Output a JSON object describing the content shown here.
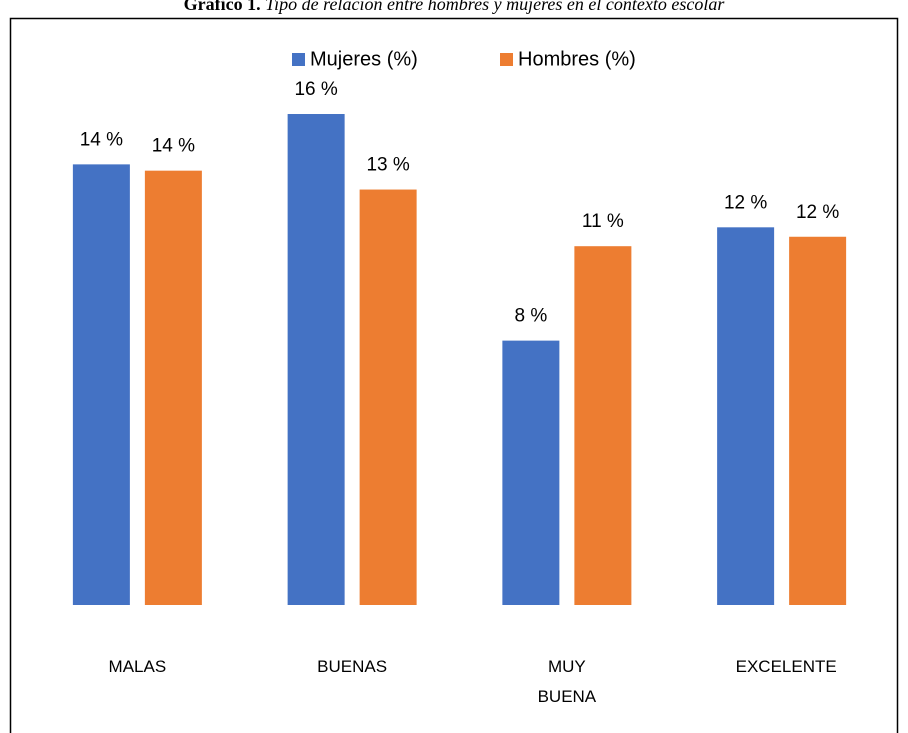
{
  "chart_data": {
    "type": "bar",
    "title_label": "Gráfico 1.",
    "title": "Tipo de relación entre hombres y mujeres en el contexto escolar",
    "categories": [
      "MALAS",
      "BUENAS",
      "MUY BUENA",
      "EXCELENTE"
    ],
    "series": [
      {
        "name": "Mujeres (%)",
        "color": "#4472c4",
        "values": [
          14.0,
          15.6,
          8.4,
          12.0
        ],
        "value_labels": [
          "14 %",
          "16 %",
          "8 %",
          "12 %"
        ]
      },
      {
        "name": "Hombres (%)",
        "color": "#ed7d31",
        "values": [
          13.8,
          13.2,
          11.4,
          11.7
        ],
        "value_labels": [
          "14 %",
          "13 %",
          "11 %",
          "12 %"
        ]
      }
    ],
    "ylim": [
      0,
      19
    ],
    "legend": "top"
  }
}
